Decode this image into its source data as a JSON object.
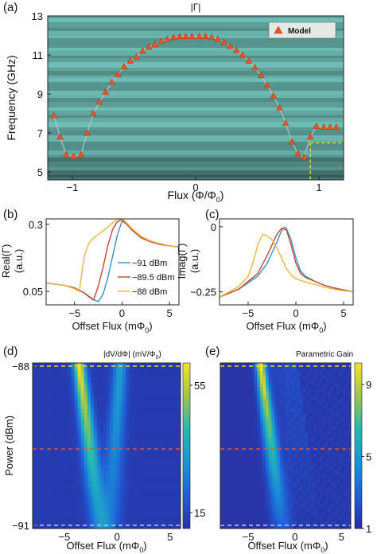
{
  "chart_data": [
    {
      "panel": "(a)",
      "type": "heatmap",
      "title": "|Γ|",
      "xlabel": "Flux (Φ/Φ0)",
      "ylabel": "Frequency (GHz)",
      "xlim": [
        -1.2,
        1.2
      ],
      "ylim": [
        4.6,
        13
      ],
      "xticks": [
        "−1",
        "0",
        "1"
      ],
      "yticks": [
        "5",
        "7",
        "9",
        "11",
        "13"
      ],
      "legend": "Model",
      "colors": {
        "marker": "#e8552a",
        "background": "#4f8c87",
        "guide": "#e7e13a",
        "curve": "#bfc4c2"
      },
      "model_points": {
        "x": [
          -1.15,
          -1.1,
          -1.05,
          -0.99,
          -0.93,
          -0.88,
          -0.83,
          -0.78,
          -0.73,
          -0.68,
          -0.63,
          -0.58,
          -0.53,
          -0.48,
          -0.43,
          -0.38,
          -0.33,
          -0.28,
          -0.23,
          -0.18,
          -0.13,
          -0.08,
          -0.03,
          0.03,
          0.08,
          0.13,
          0.18,
          0.23,
          0.28,
          0.33,
          0.38,
          0.43,
          0.48,
          0.53,
          0.58,
          0.63,
          0.68,
          0.73,
          0.78,
          0.83,
          0.88,
          0.93,
          0.98,
          1.04,
          1.09,
          1.14
        ],
        "y": [
          7.9,
          6.8,
          5.9,
          5.8,
          5.9,
          7.0,
          8.0,
          8.6,
          9.1,
          9.6,
          10.0,
          10.4,
          10.7,
          10.9,
          11.2,
          11.4,
          11.55,
          11.7,
          11.8,
          11.9,
          11.95,
          11.95,
          11.95,
          11.95,
          11.95,
          11.9,
          11.8,
          11.65,
          11.45,
          11.25,
          11.0,
          10.7,
          10.35,
          9.95,
          9.45,
          8.9,
          8.3,
          7.5,
          6.55,
          5.95,
          5.75,
          6.8,
          7.35,
          7.3,
          7.3,
          7.3
        ]
      },
      "annotation": {
        "flux": 0.93,
        "frequency": 6.5
      }
    },
    {
      "panel": "(b)",
      "type": "line",
      "xlabel": "Offset Flux (mΦ0)",
      "ylabel": "Real(Γ) (a.u.)",
      "xlim": [
        -8,
        6
      ],
      "ylim": [
        0.0,
        0.32
      ],
      "xticks": [
        "−5",
        "0",
        "5"
      ],
      "yticks": [
        "0.05",
        "0.3"
      ],
      "series": [
        {
          "name": "−91 dBm",
          "color": "#3a8fc9",
          "x": [
            -8,
            -6,
            -5,
            -4,
            -3,
            -2.5,
            -2,
            -1.5,
            -1,
            -0.5,
            0,
            0.5,
            1,
            2,
            3,
            4,
            5,
            6
          ],
          "y": [
            0.082,
            0.072,
            0.062,
            0.045,
            0.02,
            0.012,
            0.04,
            0.1,
            0.18,
            0.26,
            0.312,
            0.3,
            0.28,
            0.25,
            0.235,
            0.225,
            0.22,
            0.215
          ]
        },
        {
          "name": "−89.5 dBm",
          "color": "#c9482b",
          "x": [
            -8,
            -6,
            -5,
            -4,
            -3.5,
            -3,
            -2.5,
            -2,
            -1.5,
            -1,
            -0.5,
            0,
            0.5,
            1,
            2,
            3,
            4,
            5,
            6
          ],
          "y": [
            0.082,
            0.072,
            0.063,
            0.045,
            0.03,
            0.018,
            0.07,
            0.14,
            0.22,
            0.28,
            0.31,
            0.318,
            0.3,
            0.28,
            0.25,
            0.235,
            0.225,
            0.22,
            0.215
          ]
        },
        {
          "name": "−88 dBm",
          "color": "#e9b73d",
          "x": [
            -8,
            -6,
            -5,
            -4.5,
            -4,
            -3.5,
            -3,
            -2,
            -1,
            -0.5,
            0,
            0.5,
            1,
            2,
            3,
            4,
            5,
            6
          ],
          "y": [
            0.082,
            0.072,
            0.06,
            0.05,
            0.18,
            0.23,
            0.25,
            0.275,
            0.305,
            0.32,
            0.32,
            0.305,
            0.285,
            0.255,
            0.238,
            0.228,
            0.22,
            0.215
          ]
        }
      ]
    },
    {
      "panel": "(c)",
      "type": "line",
      "xlabel": "Offset Flux (mΦ0)",
      "ylabel": "Imag(Γ) (a.u.)",
      "xlim": [
        -8,
        6
      ],
      "ylim": [
        -0.3,
        0.03
      ],
      "xticks": [
        "−5",
        "0",
        "5"
      ],
      "yticks": [
        "−0.25",
        "0"
      ],
      "series": [
        {
          "name": "−91 dBm",
          "color": "#3a8fc9",
          "x": [
            -8,
            -6,
            -4,
            -3,
            -2,
            -1.5,
            -1.2,
            -1,
            -0.5,
            0,
            0.5,
            1,
            2,
            3,
            4,
            5,
            6
          ],
          "y": [
            -0.27,
            -0.24,
            -0.19,
            -0.14,
            -0.06,
            -0.015,
            -0.002,
            -0.006,
            -0.05,
            -0.12,
            -0.17,
            -0.19,
            -0.21,
            -0.225,
            -0.235,
            -0.243,
            -0.25
          ]
        },
        {
          "name": "−89.5 dBm",
          "color": "#c9482b",
          "x": [
            -8,
            -6,
            -4,
            -3,
            -2.5,
            -2,
            -1.5,
            -1,
            -0.5,
            0,
            0.5,
            1,
            2,
            3,
            4,
            5,
            6
          ],
          "y": [
            -0.27,
            -0.24,
            -0.18,
            -0.11,
            -0.07,
            -0.03,
            -0.006,
            -0.012,
            -0.07,
            -0.14,
            -0.18,
            -0.195,
            -0.21,
            -0.225,
            -0.235,
            -0.243,
            -0.25
          ]
        },
        {
          "name": "−88 dBm",
          "color": "#e9b73d",
          "x": [
            -8,
            -6,
            -5,
            -4.5,
            -4,
            -3.5,
            -3,
            -2.5,
            -2,
            -1.5,
            -1,
            -0.5,
            0,
            1,
            2,
            3,
            4,
            5,
            6
          ],
          "y": [
            -0.27,
            -0.23,
            -0.19,
            -0.14,
            -0.07,
            -0.03,
            -0.035,
            -0.05,
            -0.08,
            -0.12,
            -0.16,
            -0.185,
            -0.2,
            -0.212,
            -0.222,
            -0.232,
            -0.24,
            -0.246,
            -0.25
          ]
        }
      ]
    },
    {
      "panel": "(d)",
      "type": "heatmap",
      "xlabel": "Offset Flux (mΦ0)",
      "ylabel": "Power (dBm)",
      "colorbar_label": "|dV/dΦ| (mV/Φ0)",
      "colorbar_ticks": [
        "55",
        "15"
      ],
      "xlim": [
        -8,
        6
      ],
      "ylim": [
        -91,
        -88
      ],
      "xticks": [
        "−5",
        "0",
        "5"
      ],
      "yticks": [
        "−88",
        "−91"
      ],
      "guides": {
        "top_dbm": -88,
        "mid_dbm": -89.5,
        "bottom_dbm": -91
      }
    },
    {
      "panel": "(e)",
      "type": "heatmap",
      "xlabel": "Offset Flux (mΦ0)",
      "colorbar_label": "Parametric Gain",
      "colorbar_ticks": [
        "9",
        "5",
        "1"
      ],
      "xlim": [
        -8,
        6
      ],
      "ylim": [
        -91,
        -88
      ],
      "xticks": [
        "−5",
        "0",
        "5"
      ],
      "guides": {
        "top_dbm": -88,
        "mid_dbm": -89.5,
        "bottom_dbm": -91
      }
    }
  ],
  "panels": {
    "a": {
      "tag": "(a)",
      "title": "|Γ|",
      "xlabel": "Flux (Φ/Φ",
      "xlabel_sub": "0",
      "xlabel_end": ")",
      "ylabel": "Frequency (GHz)",
      "legend": "Model"
    },
    "b": {
      "tag": "(b)",
      "ylabel1": "Real(Γ)",
      "ylabel2": "(a.u.)",
      "xlabel": "Offset Flux (mΦ",
      "xlabel_sub": "0",
      "xlabel_end": ")",
      "legend": [
        "−91 dBm",
        "−89.5 dBm",
        "−88 dBm"
      ]
    },
    "c": {
      "tag": "(c)",
      "ylabel1": "Imag(Γ)",
      "ylabel2": "(a.u.)",
      "xlabel": "Offset Flux (mΦ",
      "xlabel_sub": "0",
      "xlabel_end": ")"
    },
    "d": {
      "tag": "(d)",
      "ylabel": "Power (dBm)",
      "cbar": "|dV/dΦ|  (mV/Φ",
      "cbar_sub": "0",
      "cbar_end": ")",
      "xlabel": "Offset Flux (mΦ",
      "xlabel_sub": "0",
      "xlabel_end": ")"
    },
    "e": {
      "tag": "(e)",
      "cbar": "Parametric Gain",
      "xlabel": "Offset Flux (mΦ",
      "xlabel_sub": "0",
      "xlabel_end": ")"
    }
  }
}
